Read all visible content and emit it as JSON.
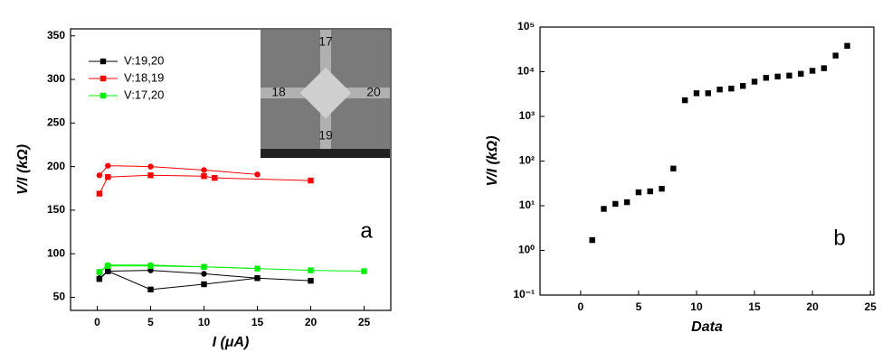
{
  "chart_data": [
    {
      "type": "line",
      "x_label": "I (μA)",
      "y_label": "V/I (kΩ)",
      "annotation": "a",
      "xlim": [
        -2.5,
        27.5
      ],
      "xticks": [
        0,
        5,
        10,
        15,
        20,
        25
      ],
      "ylim": [
        35,
        358
      ],
      "yticks": [
        50,
        100,
        150,
        200,
        250,
        300,
        350
      ],
      "inset_labels": [
        "17",
        "18",
        "20",
        "19"
      ],
      "series": [
        {
          "name": "V:19,20",
          "color": "#000000",
          "runs": [
            {
              "marker": "square",
              "x": [
                0.2,
                1,
                5,
                10,
                15,
                20
              ],
              "values": [
                71,
                80,
                59,
                65,
                72,
                69
              ]
            },
            {
              "marker": "circle",
              "x": [
                0.2,
                1,
                5,
                10,
                15
              ],
              "values": [
                72,
                80,
                81,
                77,
                72
              ]
            }
          ]
        },
        {
          "name": "V:18,19",
          "color": "#ff0000",
          "runs": [
            {
              "marker": "square",
              "x": [
                0.2,
                1,
                5,
                10,
                11,
                20
              ],
              "values": [
                169,
                188,
                190,
                189,
                187,
                184
              ]
            },
            {
              "marker": "circle",
              "x": [
                0.2,
                1,
                5,
                10,
                15
              ],
              "values": [
                190,
                201,
                200,
                196,
                191
              ]
            }
          ]
        },
        {
          "name": "V:17,20",
          "color": "#00ee00",
          "runs": [
            {
              "marker": "square",
              "x": [
                0.2,
                1,
                5,
                10,
                15,
                20,
                25
              ],
              "values": [
                79,
                86,
                86,
                85,
                83,
                81,
                80
              ]
            },
            {
              "marker": "circle",
              "x": [
                0.2,
                1,
                5,
                10,
                15
              ],
              "values": [
                79,
                87,
                87,
                85,
                83
              ]
            }
          ]
        }
      ]
    },
    {
      "type": "scatter",
      "x_label": "Data",
      "y_label": "V/I (kΩ)",
      "annotation": "b",
      "log_y": true,
      "xlim": [
        -3.5,
        25.3
      ],
      "xticks": [
        0,
        5,
        10,
        15,
        20,
        25
      ],
      "ylim": [
        0.1,
        100000
      ],
      "yticks": [
        {
          "value": 0.1,
          "label": "10⁻¹"
        },
        {
          "value": 1,
          "label": "10⁰"
        },
        {
          "value": 10,
          "label": "10¹"
        },
        {
          "value": 100,
          "label": "10²"
        },
        {
          "value": 1000,
          "label": "10³"
        },
        {
          "value": 10000,
          "label": "10⁴"
        },
        {
          "value": 100000,
          "label": "10⁵"
        }
      ],
      "color": "#000000",
      "x": [
        1,
        2,
        3,
        4,
        5,
        6,
        7,
        8,
        9,
        10,
        11,
        12,
        13,
        14,
        15,
        16,
        17,
        18,
        19,
        20,
        21,
        22,
        23
      ],
      "values": [
        1.7,
        8.5,
        11,
        12,
        20,
        21,
        24,
        68,
        2300,
        3300,
        3300,
        4000,
        4200,
        4800,
        6000,
        7300,
        7800,
        8200,
        9000,
        10500,
        12000,
        23000,
        38000
      ]
    }
  ]
}
